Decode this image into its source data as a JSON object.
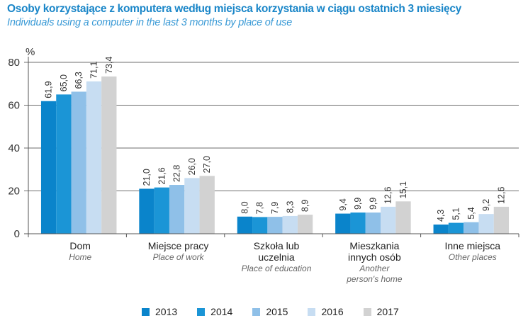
{
  "chart_data": {
    "type": "bar",
    "title": "Osoby korzystające z komputera według miejsca korzystania w ciągu ostatnich 3 miesięcy",
    "subtitle": "Individuals using a computer in the last 3 months by place of use",
    "ylabel": "%",
    "xlabel": "",
    "ylim": [
      0,
      80
    ],
    "yticks": [
      0,
      20,
      40,
      60,
      80
    ],
    "grid": true,
    "legend_position": "bottom",
    "categories": [
      {
        "main": [
          "Dom"
        ],
        "sub": [
          "Home"
        ]
      },
      {
        "main": [
          "Miejsce pracy"
        ],
        "sub": [
          "Place of work"
        ]
      },
      {
        "main": [
          "Szkoła lub",
          "uczelnia"
        ],
        "sub": [
          "Place of education"
        ]
      },
      {
        "main": [
          "Mieszkania",
          "innych osób"
        ],
        "sub": [
          "Another",
          "person's home"
        ]
      },
      {
        "main": [
          "Inne miejsca"
        ],
        "sub": [
          "Other places"
        ]
      }
    ],
    "series": [
      {
        "name": "2013",
        "color": "#0a84cb",
        "values": [
          61.9,
          21.0,
          8.0,
          9.4,
          4.3
        ],
        "labels": [
          "61,9",
          "21,0",
          "8,0",
          "9,4",
          "4,3"
        ]
      },
      {
        "name": "2014",
        "color": "#1b95d6",
        "values": [
          65.0,
          21.6,
          7.8,
          9.9,
          5.1
        ],
        "labels": [
          "65,0",
          "21,6",
          "7,8",
          "9,9",
          "5,1"
        ]
      },
      {
        "name": "2015",
        "color": "#8fc0e8",
        "values": [
          66.3,
          22.8,
          7.9,
          9.9,
          5.4
        ],
        "labels": [
          "66,3",
          "22,8",
          "7,9",
          "9,9",
          "5,4"
        ]
      },
      {
        "name": "2016",
        "color": "#c7ddf2",
        "values": [
          71.1,
          26.0,
          8.3,
          12.6,
          9.2
        ],
        "labels": [
          "71,1",
          "26,0",
          "8,3",
          "12,6",
          "9,2"
        ]
      },
      {
        "name": "2017",
        "color": "#d2d2d2",
        "values": [
          73.4,
          27.0,
          8.9,
          15.1,
          12.6
        ],
        "labels": [
          "73,4",
          "27,0",
          "8,9",
          "15,1",
          "12,6"
        ]
      }
    ]
  }
}
